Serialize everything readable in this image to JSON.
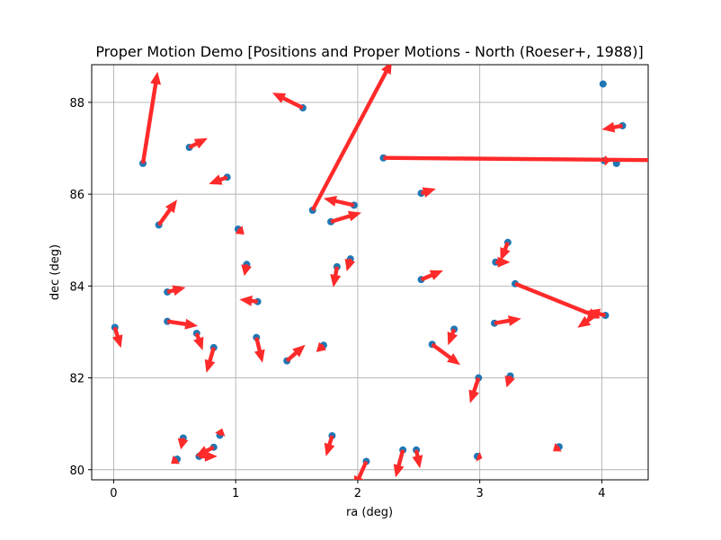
{
  "chart_data": {
    "type": "scatter",
    "title": "Proper Motion Demo [Positions and Proper Motions - North (Roeser+, 1988)]",
    "xlabel": "ra (deg)",
    "ylabel": "dec (deg)",
    "xlim": [
      -0.18,
      4.38
    ],
    "ylim": [
      79.78,
      88.82
    ],
    "xticks": [
      0,
      1,
      2,
      3,
      4
    ],
    "yticks": [
      80,
      82,
      84,
      86,
      88
    ],
    "grid": true,
    "point_color": "#1f77b4",
    "arrow_color": "#ff2a2a",
    "stars": [
      {
        "ra": 0.24,
        "dec": 86.67,
        "dra": 0.12,
        "ddec": 2.0
      },
      {
        "ra": 0.37,
        "dec": 85.33,
        "dra": 0.15,
        "ddec": 0.55
      },
      {
        "ra": 0.62,
        "dec": 87.02,
        "dra": 0.15,
        "ddec": 0.2
      },
      {
        "ra": 0.93,
        "dec": 86.37,
        "dra": -0.15,
        "ddec": -0.15
      },
      {
        "ra": 1.55,
        "dec": 87.88,
        "dra": -0.25,
        "ddec": 0.33
      },
      {
        "ra": 1.63,
        "dec": 85.65,
        "dra": 0.65,
        "ddec": 3.25
      },
      {
        "ra": 1.78,
        "dec": 85.4,
        "dra": 0.25,
        "ddec": 0.2
      },
      {
        "ra": 1.97,
        "dec": 85.76,
        "dra": -0.25,
        "ddec": 0.15
      },
      {
        "ra": 2.21,
        "dec": 86.79,
        "dra": 2.3,
        "ddec": -0.05
      },
      {
        "ra": 2.52,
        "dec": 86.02,
        "dra": 0.12,
        "ddec": 0.1
      },
      {
        "ra": 1.02,
        "dec": 85.24,
        "dra": 0.05,
        "ddec": -0.12
      },
      {
        "ra": 1.09,
        "dec": 84.47,
        "dra": -0.02,
        "ddec": -0.25
      },
      {
        "ra": 0.44,
        "dec": 83.87,
        "dra": 0.15,
        "ddec": 0.1
      },
      {
        "ra": 1.18,
        "dec": 83.66,
        "dra": -0.15,
        "ddec": 0.05
      },
      {
        "ra": 1.94,
        "dec": 84.59,
        "dra": -0.03,
        "ddec": -0.27
      },
      {
        "ra": 1.83,
        "dec": 84.42,
        "dra": -0.03,
        "ddec": -0.45
      },
      {
        "ra": 2.52,
        "dec": 84.14,
        "dra": 0.18,
        "ddec": 0.2
      },
      {
        "ra": 3.23,
        "dec": 84.95,
        "dra": -0.06,
        "ddec": -0.4
      },
      {
        "ra": 3.13,
        "dec": 84.52,
        "dra": 0.12,
        "ddec": 0.0
      },
      {
        "ra": 3.29,
        "dec": 84.05,
        "dra": 0.7,
        "ddec": -0.75
      },
      {
        "ra": 3.95,
        "dec": 83.37,
        "dra": -0.15,
        "ddec": -0.28
      },
      {
        "ra": 4.03,
        "dec": 83.36,
        "dra": -0.15,
        "ddec": 0.1
      },
      {
        "ra": 0.01,
        "dec": 83.1,
        "dra": 0.05,
        "ddec": -0.45
      },
      {
        "ra": 0.44,
        "dec": 83.23,
        "dra": 0.25,
        "ddec": -0.1
      },
      {
        "ra": 0.68,
        "dec": 82.97,
        "dra": 0.05,
        "ddec": -0.37
      },
      {
        "ra": 0.82,
        "dec": 82.66,
        "dra": -0.06,
        "ddec": -0.55
      },
      {
        "ra": 1.17,
        "dec": 82.88,
        "dra": 0.05,
        "ddec": -0.55
      },
      {
        "ra": 1.42,
        "dec": 82.37,
        "dra": 0.15,
        "ddec": 0.35
      },
      {
        "ra": 1.72,
        "dec": 82.71,
        "dra": -0.06,
        "ddec": -0.15
      },
      {
        "ra": 2.61,
        "dec": 82.73,
        "dra": 0.23,
        "ddec": -0.45
      },
      {
        "ra": 2.79,
        "dec": 83.06,
        "dra": -0.05,
        "ddec": -0.35
      },
      {
        "ra": 3.12,
        "dec": 83.19,
        "dra": 0.22,
        "ddec": 0.1
      },
      {
        "ra": 2.99,
        "dec": 82.0,
        "dra": -0.07,
        "ddec": -0.55
      },
      {
        "ra": 3.25,
        "dec": 82.04,
        "dra": -0.03,
        "ddec": -0.25
      },
      {
        "ra": 4.01,
        "dec": 88.4,
        "dra": 0.0,
        "ddec": 0.0
      },
      {
        "ra": 4.17,
        "dec": 87.49,
        "dra": -0.17,
        "ddec": -0.08
      },
      {
        "ra": 4.02,
        "dec": 86.73,
        "dra": 0.05,
        "ddec": 0.0
      },
      {
        "ra": 4.12,
        "dec": 86.67,
        "dra": 0.0,
        "ddec": 0.0
      },
      {
        "ra": 0.57,
        "dec": 80.69,
        "dra": -0.02,
        "ddec": -0.25
      },
      {
        "ra": 0.52,
        "dec": 80.23,
        "dra": -0.05,
        "ddec": -0.1
      },
      {
        "ra": 0.7,
        "dec": 80.29,
        "dra": 0.15,
        "ddec": 0.0
      },
      {
        "ra": 0.82,
        "dec": 80.49,
        "dra": -0.15,
        "ddec": -0.2
      },
      {
        "ra": 0.87,
        "dec": 80.75,
        "dra": 0.02,
        "ddec": 0.15
      },
      {
        "ra": 1.79,
        "dec": 80.74,
        "dra": -0.05,
        "ddec": -0.45
      },
      {
        "ra": 2.07,
        "dec": 80.18,
        "dra": -0.1,
        "ddec": -0.6
      },
      {
        "ra": 2.37,
        "dec": 80.43,
        "dra": -0.06,
        "ddec": -0.6
      },
      {
        "ra": 2.48,
        "dec": 80.43,
        "dra": 0.03,
        "ddec": -0.4
      },
      {
        "ra": 2.98,
        "dec": 80.29,
        "dra": 0.04,
        "ddec": -0.04
      },
      {
        "ra": 3.65,
        "dec": 80.5,
        "dra": -0.05,
        "ddec": -0.1
      }
    ]
  }
}
